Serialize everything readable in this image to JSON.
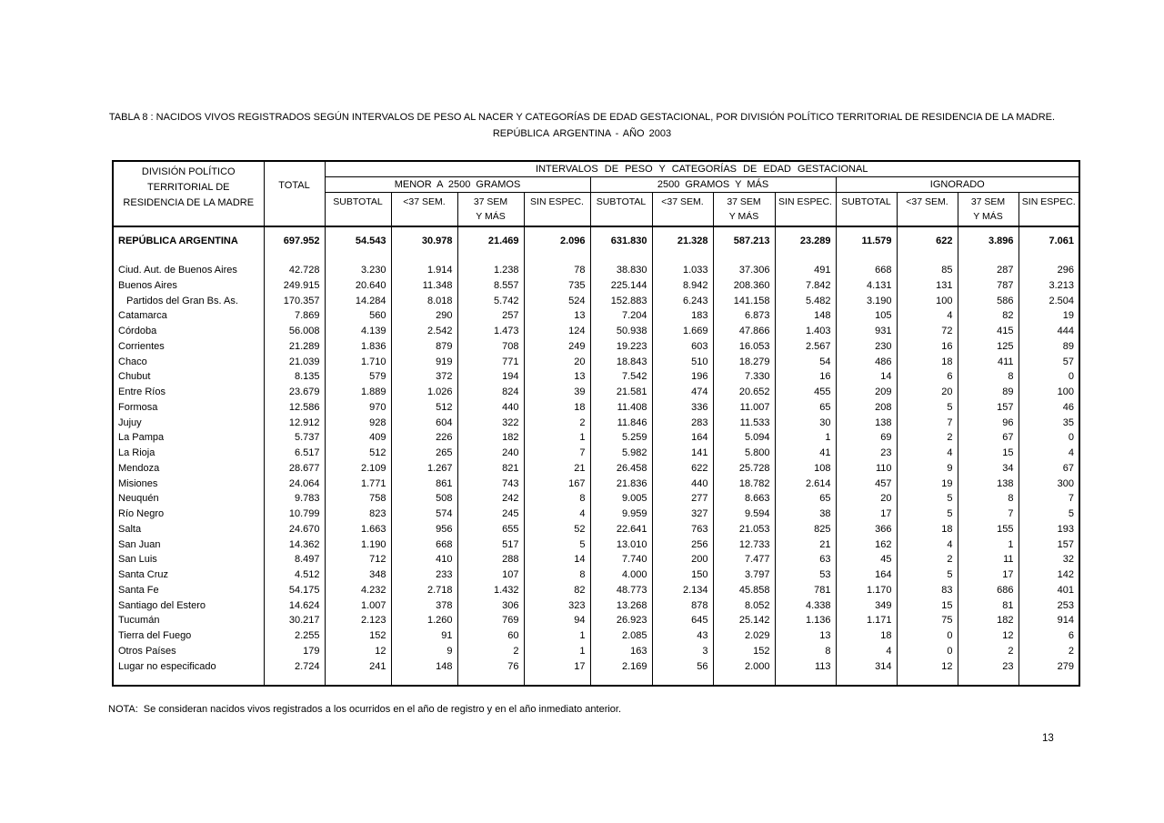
{
  "page": {
    "title_line1": "TABLA 8 : NACIDOS VIVOS REGISTRADOS SEGÚN INTERVALOS DE PESO AL NACER Y CATEGORÍAS DE EDAD GESTACIONAL, POR DIVISIÓN POLÍTICO TERRITORIAL DE RESIDENCIA DE LA MADRE.",
    "title_line2": "REPÚBLICA ARGENTINA - AÑO 2003",
    "note_label": "NOTA:",
    "note_text": "Se consideran nacidos vivos registrados a los ocurridos en el año de registro y en el año inmediato anterior.",
    "page_number": "13"
  },
  "table": {
    "header": {
      "col1": [
        "DIVISIÓN POLÍTICO",
        "TERRITORIAL  DE",
        "RESIDENCIA DE LA MADRE"
      ],
      "total": "TOTAL",
      "span_title": "INTERVALOS DE PESO Y CATEGORÍAS DE EDAD GESTACIONAL",
      "groups": [
        {
          "label": "MENOR A 2500 GRAMOS"
        },
        {
          "label": "2500 GRAMOS Y MÁS"
        },
        {
          "label": "IGNORADO"
        }
      ],
      "sub": [
        [
          "SUBTOTAL",
          ""
        ],
        [
          "<37 SEM.",
          ""
        ],
        [
          "37 SEM",
          "Y MÁS"
        ],
        [
          "SIN ESPEC.",
          ""
        ]
      ]
    },
    "rows": [
      {
        "name": "REPÚBLICA ARGENTINA",
        "type": "national",
        "values": [
          "697.952",
          "54.543",
          "30.978",
          "21.469",
          "2.096",
          "631.830",
          "21.328",
          "587.213",
          "23.289",
          "11.579",
          "622",
          "3.896",
          "7.061"
        ]
      },
      {
        "name": "Ciud. Aut. de Buenos Aires",
        "type": "province",
        "values": [
          "42.728",
          "3.230",
          "1.914",
          "1.238",
          "78",
          "38.830",
          "1.033",
          "37.306",
          "491",
          "668",
          "85",
          "287",
          "296"
        ]
      },
      {
        "name": "Buenos Aires",
        "type": "province",
        "values": [
          "249.915",
          "20.640",
          "11.348",
          "8.557",
          "735",
          "225.144",
          "8.942",
          "208.360",
          "7.842",
          "4.131",
          "131",
          "787",
          "3.213"
        ]
      },
      {
        "name": "Partidos del Gran Bs. As.",
        "type": "indent",
        "values": [
          "170.357",
          "14.284",
          "8.018",
          "5.742",
          "524",
          "152.883",
          "6.243",
          "141.158",
          "5.482",
          "3.190",
          "100",
          "586",
          "2.504"
        ]
      },
      {
        "name": "Catamarca",
        "type": "province",
        "values": [
          "7.869",
          "560",
          "290",
          "257",
          "13",
          "7.204",
          "183",
          "6.873",
          "148",
          "105",
          "4",
          "82",
          "19"
        ]
      },
      {
        "name": "Córdoba",
        "type": "province",
        "values": [
          "56.008",
          "4.139",
          "2.542",
          "1.473",
          "124",
          "50.938",
          "1.669",
          "47.866",
          "1.403",
          "931",
          "72",
          "415",
          "444"
        ]
      },
      {
        "name": "Corrientes",
        "type": "province",
        "values": [
          "21.289",
          "1.836",
          "879",
          "708",
          "249",
          "19.223",
          "603",
          "16.053",
          "2.567",
          "230",
          "16",
          "125",
          "89"
        ]
      },
      {
        "name": "Chaco",
        "type": "province",
        "values": [
          "21.039",
          "1.710",
          "919",
          "771",
          "20",
          "18.843",
          "510",
          "18.279",
          "54",
          "486",
          "18",
          "411",
          "57"
        ]
      },
      {
        "name": "Chubut",
        "type": "province",
        "values": [
          "8.135",
          "579",
          "372",
          "194",
          "13",
          "7.542",
          "196",
          "7.330",
          "16",
          "14",
          "6",
          "8",
          "0"
        ]
      },
      {
        "name": "Entre Ríos",
        "type": "province",
        "values": [
          "23.679",
          "1.889",
          "1.026",
          "824",
          "39",
          "21.581",
          "474",
          "20.652",
          "455",
          "209",
          "20",
          "89",
          "100"
        ]
      },
      {
        "name": "Formosa",
        "type": "province",
        "values": [
          "12.586",
          "970",
          "512",
          "440",
          "18",
          "11.408",
          "336",
          "11.007",
          "65",
          "208",
          "5",
          "157",
          "46"
        ]
      },
      {
        "name": "Jujuy",
        "type": "province",
        "values": [
          "12.912",
          "928",
          "604",
          "322",
          "2",
          "11.846",
          "283",
          "11.533",
          "30",
          "138",
          "7",
          "96",
          "35"
        ]
      },
      {
        "name": "La Pampa",
        "type": "province",
        "values": [
          "5.737",
          "409",
          "226",
          "182",
          "1",
          "5.259",
          "164",
          "5.094",
          "1",
          "69",
          "2",
          "67",
          "0"
        ]
      },
      {
        "name": "La Rioja",
        "type": "province",
        "values": [
          "6.517",
          "512",
          "265",
          "240",
          "7",
          "5.982",
          "141",
          "5.800",
          "41",
          "23",
          "4",
          "15",
          "4"
        ]
      },
      {
        "name": "Mendoza",
        "type": "province",
        "values": [
          "28.677",
          "2.109",
          "1.267",
          "821",
          "21",
          "26.458",
          "622",
          "25.728",
          "108",
          "110",
          "9",
          "34",
          "67"
        ]
      },
      {
        "name": "Misiones",
        "type": "province",
        "values": [
          "24.064",
          "1.771",
          "861",
          "743",
          "167",
          "21.836",
          "440",
          "18.782",
          "2.614",
          "457",
          "19",
          "138",
          "300"
        ]
      },
      {
        "name": "Neuquén",
        "type": "province",
        "values": [
          "9.783",
          "758",
          "508",
          "242",
          "8",
          "9.005",
          "277",
          "8.663",
          "65",
          "20",
          "5",
          "8",
          "7"
        ]
      },
      {
        "name": "Río Negro",
        "type": "province",
        "values": [
          "10.799",
          "823",
          "574",
          "245",
          "4",
          "9.959",
          "327",
          "9.594",
          "38",
          "17",
          "5",
          "7",
          "5"
        ]
      },
      {
        "name": "Salta",
        "type": "province",
        "values": [
          "24.670",
          "1.663",
          "956",
          "655",
          "52",
          "22.641",
          "763",
          "21.053",
          "825",
          "366",
          "18",
          "155",
          "193"
        ]
      },
      {
        "name": "San Juan",
        "type": "province",
        "values": [
          "14.362",
          "1.190",
          "668",
          "517",
          "5",
          "13.010",
          "256",
          "12.733",
          "21",
          "162",
          "4",
          "1",
          "157"
        ]
      },
      {
        "name": "San Luis",
        "type": "province",
        "values": [
          "8.497",
          "712",
          "410",
          "288",
          "14",
          "7.740",
          "200",
          "7.477",
          "63",
          "45",
          "2",
          "11",
          "32"
        ]
      },
      {
        "name": "Santa Cruz",
        "type": "province",
        "values": [
          "4.512",
          "348",
          "233",
          "107",
          "8",
          "4.000",
          "150",
          "3.797",
          "53",
          "164",
          "5",
          "17",
          "142"
        ]
      },
      {
        "name": "Santa Fe",
        "type": "province",
        "values": [
          "54.175",
          "4.232",
          "2.718",
          "1.432",
          "82",
          "48.773",
          "2.134",
          "45.858",
          "781",
          "1.170",
          "83",
          "686",
          "401"
        ]
      },
      {
        "name": "Santiago del Estero",
        "type": "province",
        "values": [
          "14.624",
          "1.007",
          "378",
          "306",
          "323",
          "13.268",
          "878",
          "8.052",
          "4.338",
          "349",
          "15",
          "81",
          "253"
        ]
      },
      {
        "name": "Tucumán",
        "type": "province",
        "values": [
          "30.217",
          "2.123",
          "1.260",
          "769",
          "94",
          "26.923",
          "645",
          "25.142",
          "1.136",
          "1.171",
          "75",
          "182",
          "914"
        ]
      },
      {
        "name": "Tierra del Fuego",
        "type": "province",
        "values": [
          "2.255",
          "152",
          "91",
          "60",
          "1",
          "2.085",
          "43",
          "2.029",
          "13",
          "18",
          "0",
          "12",
          "6"
        ]
      },
      {
        "name": "Otros Países",
        "type": "province",
        "values": [
          "179",
          "12",
          "9",
          "2",
          "1",
          "163",
          "3",
          "152",
          "8",
          "4",
          "0",
          "2",
          "2"
        ]
      },
      {
        "name": "Lugar no especificado",
        "type": "province",
        "values": [
          "2.724",
          "241",
          "148",
          "76",
          "17",
          "2.169",
          "56",
          "2.000",
          "113",
          "314",
          "12",
          "23",
          "279"
        ]
      }
    ]
  }
}
